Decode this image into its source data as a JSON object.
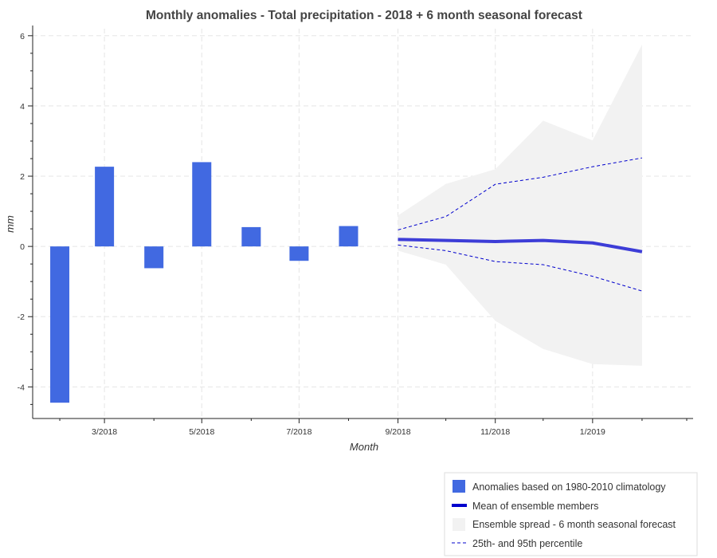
{
  "colors": {
    "bar": "#4169e1",
    "mean": "#0000cd",
    "percentile": "#0000cd",
    "spread": "#f2f2f2",
    "grid": "#e5e5e5",
    "axis": "#222222"
  },
  "chart_data": {
    "type": "bar",
    "title": "Monthly anomalies - Total precipitation - 2018 + 6 month seasonal forecast",
    "xlabel": "Month",
    "ylabel": "mm",
    "ylim": [
      -4.9,
      6.2
    ],
    "xlim": [
      "2018-01-15",
      "2019-03-05"
    ],
    "grid": true,
    "legend_position": "bottom-right",
    "x_ticks": [
      "2018-03-01",
      "2018-05-01",
      "2018-07-01",
      "2018-09-01",
      "2018-11-01",
      "2019-01-01"
    ],
    "x_tick_labels": [
      "3/2018",
      "5/2018",
      "7/2018",
      "9/2018",
      "11/2018",
      "1/2019"
    ],
    "y_ticks": [
      -4,
      -2,
      0,
      2,
      4,
      6
    ],
    "y_tick_labels": [
      "-4",
      "-2",
      "0",
      "2",
      "4",
      "6"
    ],
    "series": [
      {
        "name": "Anomalies based on 1980-2010 climatology",
        "type": "bar",
        "x": [
          "2018-02-01",
          "2018-03-01",
          "2018-04-01",
          "2018-05-01",
          "2018-06-01",
          "2018-07-01",
          "2018-08-01"
        ],
        "values": [
          -4.45,
          2.27,
          -0.62,
          2.4,
          0.55,
          -0.41,
          0.58
        ]
      },
      {
        "name": "Mean of ensemble members",
        "type": "line",
        "x": [
          "2018-09-01",
          "2018-10-01",
          "2018-11-01",
          "2018-12-01",
          "2019-01-01",
          "2019-02-01"
        ],
        "values": [
          0.2,
          0.17,
          0.14,
          0.17,
          0.1,
          -0.15
        ]
      },
      {
        "name": "Ensemble spread - 6 month seasonal forecast",
        "type": "area",
        "x": [
          "2018-09-01",
          "2018-10-01",
          "2018-11-01",
          "2018-12-01",
          "2019-01-01",
          "2019-02-01"
        ],
        "upper": [
          0.88,
          1.78,
          2.2,
          3.58,
          3.02,
          5.75
        ],
        "lower": [
          -0.12,
          -0.52,
          -2.12,
          -2.92,
          -3.35,
          -3.4
        ]
      },
      {
        "name": "25th- and 95th percentile",
        "type": "line-dashed",
        "x": [
          "2018-09-01",
          "2018-10-01",
          "2018-11-01",
          "2018-12-01",
          "2019-01-01",
          "2019-02-01"
        ],
        "upper": [
          0.47,
          0.85,
          1.77,
          1.97,
          2.27,
          2.52
        ],
        "lower": [
          0.04,
          -0.12,
          -0.43,
          -0.52,
          -0.85,
          -1.27
        ]
      }
    ]
  }
}
